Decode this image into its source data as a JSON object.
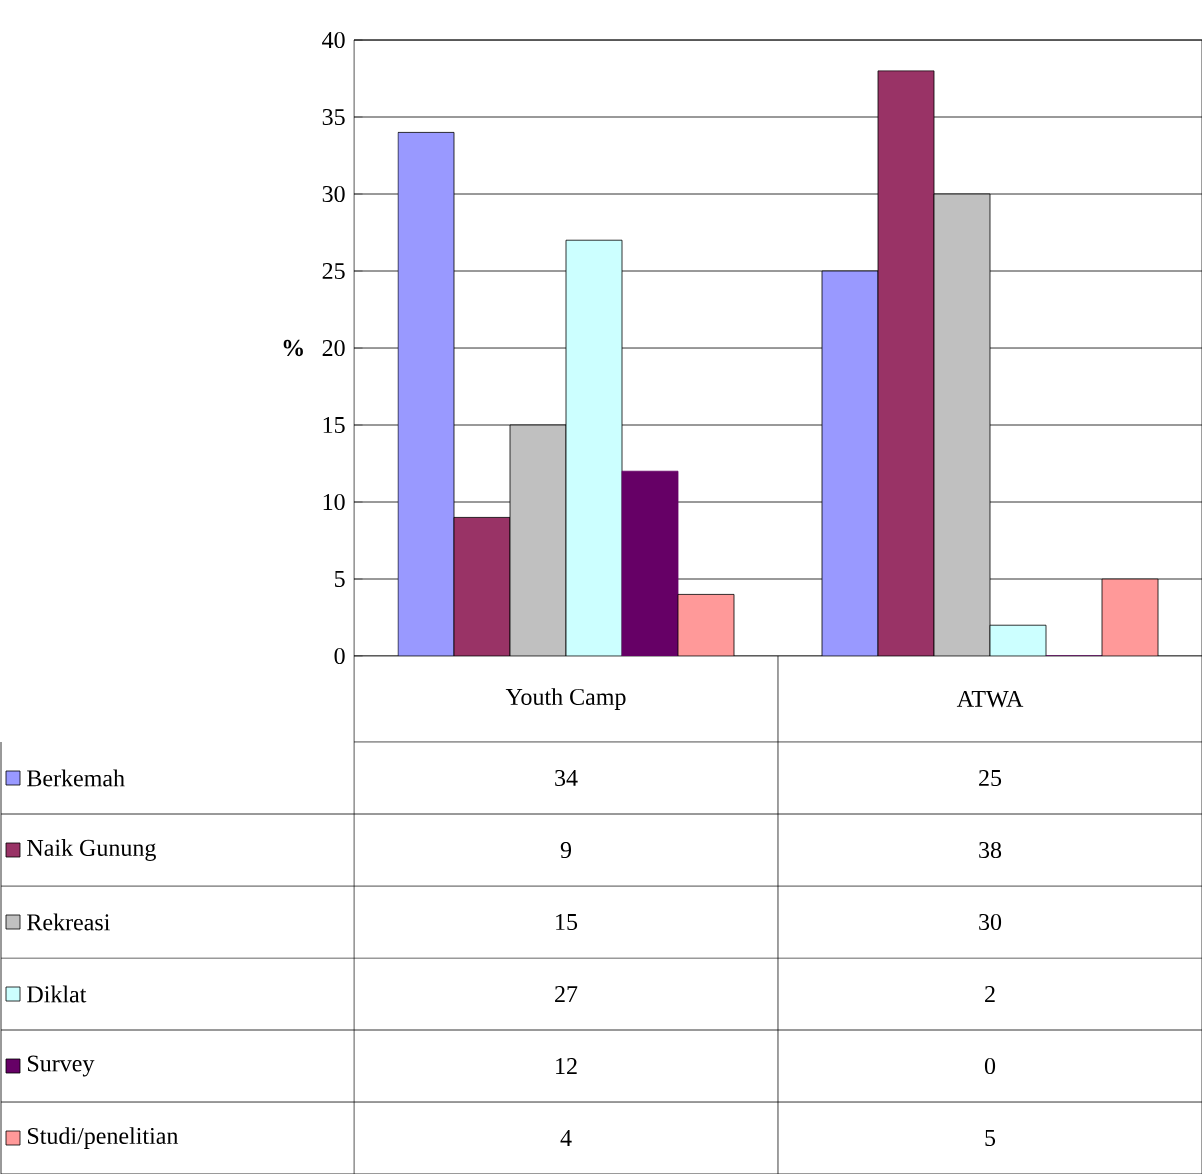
{
  "chart_data": {
    "type": "bar",
    "ylabel": "%",
    "categories": [
      "Youth Camp",
      "ATWA"
    ],
    "series": [
      {
        "name": "Berkemah",
        "color": "#9999ff",
        "values": [
          34,
          25
        ]
      },
      {
        "name": "Naik Gunung",
        "color": "#993366",
        "values": [
          9,
          38
        ]
      },
      {
        "name": "Rekreasi",
        "color": "#c0c0c0",
        "values": [
          15,
          30
        ]
      },
      {
        "name": "Diklat",
        "color": "#ccffff",
        "values": [
          27,
          2
        ]
      },
      {
        "name": "Survey",
        "color": "#660066",
        "values": [
          12,
          0
        ]
      },
      {
        "name": "Studi/penelitian",
        "color": "#ff9999",
        "values": [
          4,
          5
        ]
      }
    ],
    "ylim": [
      0,
      40
    ],
    "yticks": [
      0,
      5,
      10,
      15,
      20,
      25,
      30,
      35,
      40
    ],
    "grid": "y",
    "legend": "bottom",
    "data_labels": true
  }
}
